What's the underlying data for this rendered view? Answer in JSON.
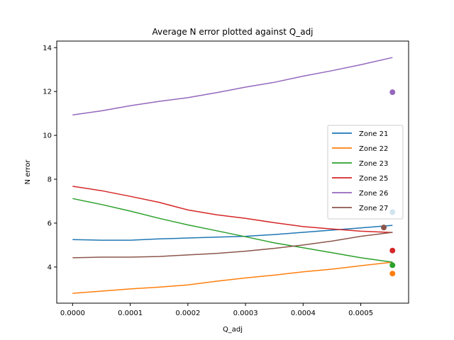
{
  "chart_data": {
    "type": "line",
    "title": "Average N error plotted against Q_adj",
    "xlabel": "Q_adj",
    "ylabel": "N error",
    "xlim": [
      -2.75e-05,
      0.000583
    ],
    "ylim": [
      2.35,
      14.3
    ],
    "xticks": [
      0,
      0.0001,
      0.0002,
      0.0003,
      0.0004,
      0.0005
    ],
    "xtick_labels": [
      "0.0000",
      "0.0001",
      "0.0002",
      "0.0003",
      "0.0004",
      "0.0005"
    ],
    "yticks": [
      4,
      6,
      8,
      10,
      12,
      14
    ],
    "ytick_labels": [
      "4",
      "6",
      "8",
      "10",
      "12",
      "14"
    ],
    "grid": false,
    "legend_position": "center-right",
    "x": [
      0,
      5e-05,
      0.0001,
      0.00015,
      0.0002,
      0.00025,
      0.0003,
      0.00035,
      0.0004,
      0.00045,
      0.0005,
      0.000555
    ],
    "series": [
      {
        "name": "Zone 21",
        "color": "#1f77b4",
        "values": [
          5.25,
          5.22,
          5.22,
          5.28,
          5.32,
          5.36,
          5.4,
          5.48,
          5.58,
          5.68,
          5.78,
          5.9
        ],
        "marker": {
          "x": 0.000555,
          "y": 6.5
        }
      },
      {
        "name": "Zone 22",
        "color": "#ff7f0e",
        "values": [
          2.8,
          2.9,
          3.0,
          3.08,
          3.18,
          3.35,
          3.5,
          3.63,
          3.78,
          3.9,
          4.06,
          4.22
        ],
        "marker": {
          "x": 0.000555,
          "y": 3.7
        }
      },
      {
        "name": "Zone 23",
        "color": "#2ca02c",
        "values": [
          7.12,
          6.85,
          6.55,
          6.22,
          5.92,
          5.65,
          5.38,
          5.1,
          4.88,
          4.65,
          4.42,
          4.22
        ],
        "marker": {
          "x": 0.000555,
          "y": 4.08
        }
      },
      {
        "name": "Zone 25",
        "color": "#d62728",
        "values": [
          7.68,
          7.48,
          7.22,
          6.95,
          6.6,
          6.38,
          6.22,
          6.02,
          5.84,
          5.73,
          5.63,
          5.57
        ],
        "marker": {
          "x": 0.000555,
          "y": 4.75
        }
      },
      {
        "name": "Zone 26",
        "color": "#9467bd",
        "values": [
          10.93,
          11.12,
          11.35,
          11.55,
          11.72,
          11.95,
          12.2,
          12.42,
          12.7,
          12.95,
          13.22,
          13.55
        ],
        "marker": {
          "x": 0.000555,
          "y": 11.97
        }
      },
      {
        "name": "Zone 27",
        "color": "#8c564b",
        "values": [
          4.42,
          4.45,
          4.45,
          4.48,
          4.55,
          4.62,
          4.72,
          4.85,
          5.0,
          5.18,
          5.4,
          5.58
        ],
        "marker": {
          "x": 0.00054,
          "y": 5.8
        }
      }
    ]
  }
}
